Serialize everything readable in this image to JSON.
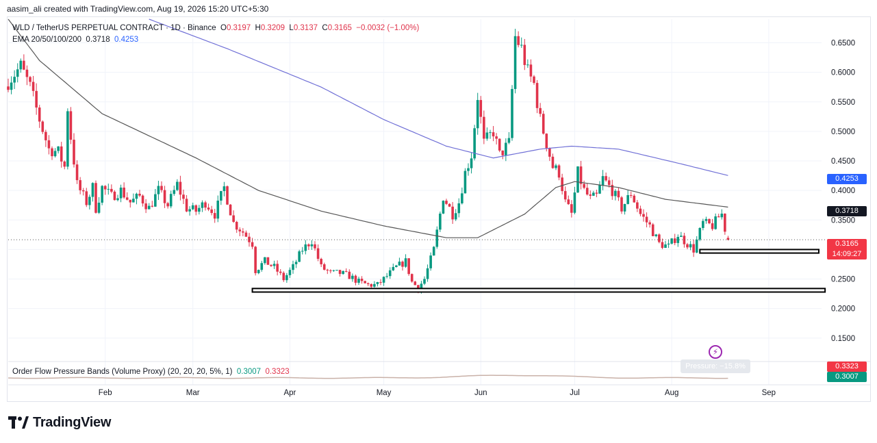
{
  "header": {
    "attribution": "aasim_ali created with TradingView.com, Aug 19, 2026 15:20 UTC+5:30"
  },
  "legend": {
    "symbol": "WLD / TetherUS PERPETUAL CONTRACT · 1D · Binance",
    "open_label": "O",
    "open": "0.3197",
    "high_label": "H",
    "high": "0.3209",
    "low_label": "L",
    "low": "0.3137",
    "close_label": "C",
    "close": "0.3165",
    "change": "−0.0032 (−1.00%)",
    "ema_label": "EMA 20/50/100/200",
    "ema_100": "0.3718",
    "ema_200": "0.4253"
  },
  "oscillator": {
    "label": "Order Flow Pressure Bands (Volume Proxy) (20, 20, 20, 5%, 1)",
    "lower": "0.3007",
    "upper": "0.3323",
    "pressure_text": "Pressure: −15.8%"
  },
  "price_tags": {
    "ema200": "0.4253",
    "ema100": "0.3718",
    "last": "0.3165",
    "countdown": "14:09:27",
    "osc_upper": "0.3323",
    "osc_lower": "0.3007"
  },
  "colors": {
    "up": "#089981",
    "down": "#e0334b",
    "ema100": "#555555",
    "ema200": "#6f6fd6",
    "osc": "#c9b1a8"
  },
  "footer": {
    "brand": "TradingView"
  },
  "chart_data": {
    "type": "candlestick",
    "symbol": "WLD / TetherUS PERPETUAL CONTRACT",
    "interval": "1D",
    "y_ticks": [
      0.15,
      0.2,
      0.25,
      0.3,
      0.35,
      0.4,
      0.45,
      0.5,
      0.55,
      0.6,
      0.65
    ],
    "y_tick_labels": [
      "0.1500",
      "0.2000",
      "0.2500",
      "",
      "0.3500",
      "0.4000",
      "0.4500",
      "0.5000",
      "0.5500",
      "0.6000",
      "0.6500"
    ],
    "ylim": [
      0.115,
      0.69
    ],
    "x_ticks": [
      {
        "day": 31,
        "label": "Feb"
      },
      {
        "day": 59,
        "label": "Mar"
      },
      {
        "day": 90,
        "label": "Apr"
      },
      {
        "day": 120,
        "label": "May"
      },
      {
        "day": 151,
        "label": "Jun"
      },
      {
        "day": 181,
        "label": "Jul"
      },
      {
        "day": 212,
        "label": "Aug"
      },
      {
        "day": 243,
        "label": "Sep"
      }
    ],
    "close_keyframes": [
      [
        0,
        0.585
      ],
      [
        4,
        0.61
      ],
      [
        7,
        0.575
      ],
      [
        10,
        0.52
      ],
      [
        13,
        0.47
      ],
      [
        16,
        0.465
      ],
      [
        18,
        0.44
      ],
      [
        19,
        0.54
      ],
      [
        20,
        0.49
      ],
      [
        22,
        0.41
      ],
      [
        25,
        0.38
      ],
      [
        27,
        0.405
      ],
      [
        28,
        0.37
      ],
      [
        30,
        0.405
      ],
      [
        33,
        0.39
      ],
      [
        36,
        0.4
      ],
      [
        39,
        0.38
      ],
      [
        42,
        0.39
      ],
      [
        45,
        0.37
      ],
      [
        48,
        0.4
      ],
      [
        51,
        0.375
      ],
      [
        54,
        0.41
      ],
      [
        57,
        0.37
      ],
      [
        60,
        0.365
      ],
      [
        63,
        0.38
      ],
      [
        66,
        0.36
      ],
      [
        69,
        0.405
      ],
      [
        72,
        0.345
      ],
      [
        75,
        0.33
      ],
      [
        78,
        0.31
      ],
      [
        79,
        0.265
      ],
      [
        82,
        0.28
      ],
      [
        85,
        0.27
      ],
      [
        88,
        0.25
      ],
      [
        91,
        0.27
      ],
      [
        94,
        0.3
      ],
      [
        97,
        0.315
      ],
      [
        100,
        0.27
      ],
      [
        103,
        0.26
      ],
      [
        106,
        0.26
      ],
      [
        109,
        0.255
      ],
      [
        112,
        0.245
      ],
      [
        115,
        0.24
      ],
      [
        118,
        0.24
      ],
      [
        121,
        0.255
      ],
      [
        124,
        0.27
      ],
      [
        127,
        0.28
      ],
      [
        129,
        0.245
      ],
      [
        131,
        0.235
      ],
      [
        133,
        0.25
      ],
      [
        136,
        0.3
      ],
      [
        139,
        0.39
      ],
      [
        142,
        0.36
      ],
      [
        144,
        0.38
      ],
      [
        146,
        0.43
      ],
      [
        148,
        0.46
      ],
      [
        150,
        0.56
      ],
      [
        152,
        0.48
      ],
      [
        155,
        0.5
      ],
      [
        157,
        0.46
      ],
      [
        160,
        0.48
      ],
      [
        162,
        0.66
      ],
      [
        164,
        0.64
      ],
      [
        166,
        0.6
      ],
      [
        168,
        0.58
      ],
      [
        170,
        0.52
      ],
      [
        172,
        0.48
      ],
      [
        174,
        0.44
      ],
      [
        176,
        0.43
      ],
      [
        178,
        0.38
      ],
      [
        180,
        0.36
      ],
      [
        182,
        0.43
      ],
      [
        184,
        0.4
      ],
      [
        186,
        0.385
      ],
      [
        188,
        0.39
      ],
      [
        190,
        0.42
      ],
      [
        193,
        0.4
      ],
      [
        196,
        0.37
      ],
      [
        199,
        0.395
      ],
      [
        202,
        0.36
      ],
      [
        205,
        0.34
      ],
      [
        208,
        0.31
      ],
      [
        211,
        0.305
      ],
      [
        214,
        0.325
      ],
      [
        217,
        0.31
      ],
      [
        219,
        0.3
      ],
      [
        222,
        0.345
      ],
      [
        225,
        0.34
      ],
      [
        227,
        0.355
      ],
      [
        228,
        0.36
      ],
      [
        229,
        0.335
      ],
      [
        230,
        0.3165
      ]
    ],
    "ema100_keyframes": [
      [
        0,
        0.69
      ],
      [
        10,
        0.62
      ],
      [
        30,
        0.53
      ],
      [
        60,
        0.455
      ],
      [
        80,
        0.4
      ],
      [
        100,
        0.365
      ],
      [
        120,
        0.34
      ],
      [
        140,
        0.32
      ],
      [
        150,
        0.32
      ],
      [
        165,
        0.36
      ],
      [
        175,
        0.405
      ],
      [
        181,
        0.415
      ],
      [
        195,
        0.405
      ],
      [
        210,
        0.385
      ],
      [
        230,
        0.3718
      ]
    ],
    "ema200_keyframes": [
      [
        45,
        0.69
      ],
      [
        70,
        0.64
      ],
      [
        100,
        0.575
      ],
      [
        120,
        0.52
      ],
      [
        140,
        0.475
      ],
      [
        155,
        0.455
      ],
      [
        170,
        0.47
      ],
      [
        180,
        0.475
      ],
      [
        195,
        0.47
      ],
      [
        215,
        0.445
      ],
      [
        230,
        0.4253
      ]
    ],
    "support_zones": [
      {
        "day_start": 221,
        "day_end": 259,
        "price_low": 0.294,
        "price_high": 0.3
      },
      {
        "day_start": 78,
        "day_end": 261,
        "price_low": 0.228,
        "price_high": 0.234
      }
    ],
    "current_price": 0.3165,
    "ema100_last": 0.3718,
    "ema200_last": 0.4253
  }
}
